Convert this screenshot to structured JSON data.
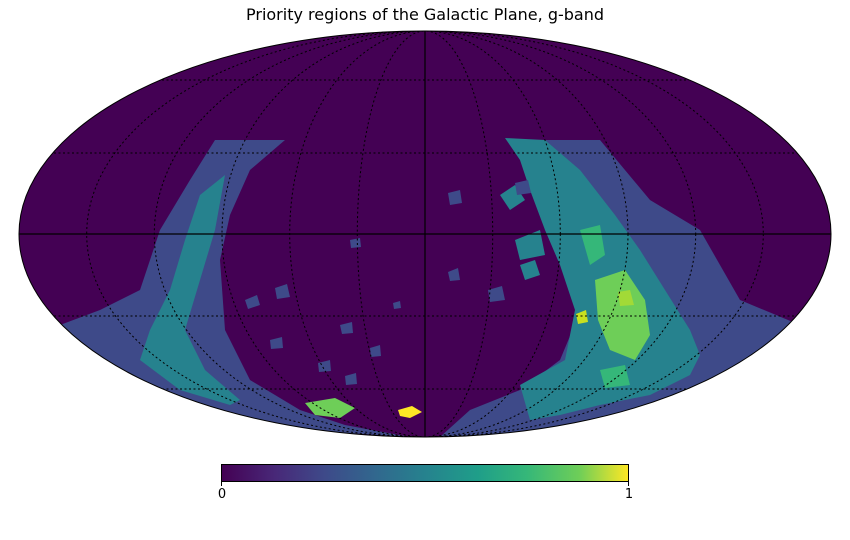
{
  "title": "Priority regions of the Galactic Plane, g-band",
  "colorbar": {
    "min_label": "0",
    "max_label": "1",
    "colormap": "viridis",
    "colors": [
      "#440154",
      "#3b528b",
      "#21918c",
      "#5ec962",
      "#fde725"
    ]
  },
  "map": {
    "projection": "mollweide",
    "background_value_color": "#440154",
    "graticule": true
  },
  "chart_data": {
    "type": "heatmap",
    "title": "Priority regions of the Galactic Plane, g-band",
    "projection": "mollweide",
    "value_range": [
      0,
      1
    ],
    "levels": [
      {
        "value": 0.0,
        "color": "#440154"
      },
      {
        "value": 0.25,
        "color": "#3b528b"
      },
      {
        "value": 0.5,
        "color": "#21918c"
      },
      {
        "value": 0.75,
        "color": "#5ec962"
      },
      {
        "value": 1.0,
        "color": "#fde725"
      }
    ]
  }
}
